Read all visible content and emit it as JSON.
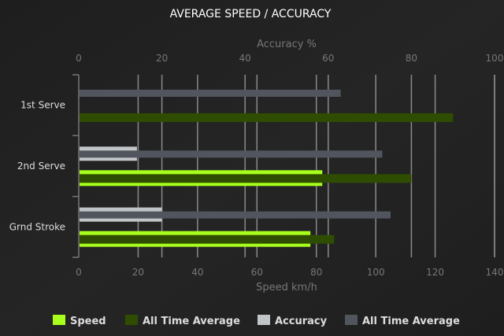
{
  "chart_data": {
    "type": "bar",
    "orientation": "horizontal",
    "title": "AVERAGE SPEED / ACCURACY",
    "categories": [
      "1st Serve",
      "2nd Serve",
      "Grnd Stroke"
    ],
    "xlabel": "Speed km/h",
    "x2label": "Accuracy %",
    "xlim": [
      0,
      140
    ],
    "x2lim": [
      0,
      100
    ],
    "xticks": [
      0,
      20,
      40,
      60,
      80,
      100,
      120,
      140
    ],
    "x2ticks": [
      0,
      20,
      40,
      60,
      80,
      100
    ],
    "grid": true,
    "legend_position": "bottom",
    "series": [
      {
        "name": "Speed",
        "axis": "speed",
        "color": "#a8ff1e",
        "values": [
          0,
          82,
          78
        ]
      },
      {
        "name": "All Time Average",
        "axis": "speed",
        "color": "#2f4d00",
        "values": [
          126,
          112,
          86
        ]
      },
      {
        "name": "Accuracy",
        "axis": "accuracy",
        "color": "#c2c5c8",
        "values": [
          0,
          14,
          20
        ]
      },
      {
        "name": "All Time Average",
        "axis": "accuracy",
        "color": "#51565e",
        "values": [
          63,
          73,
          75
        ]
      }
    ]
  }
}
